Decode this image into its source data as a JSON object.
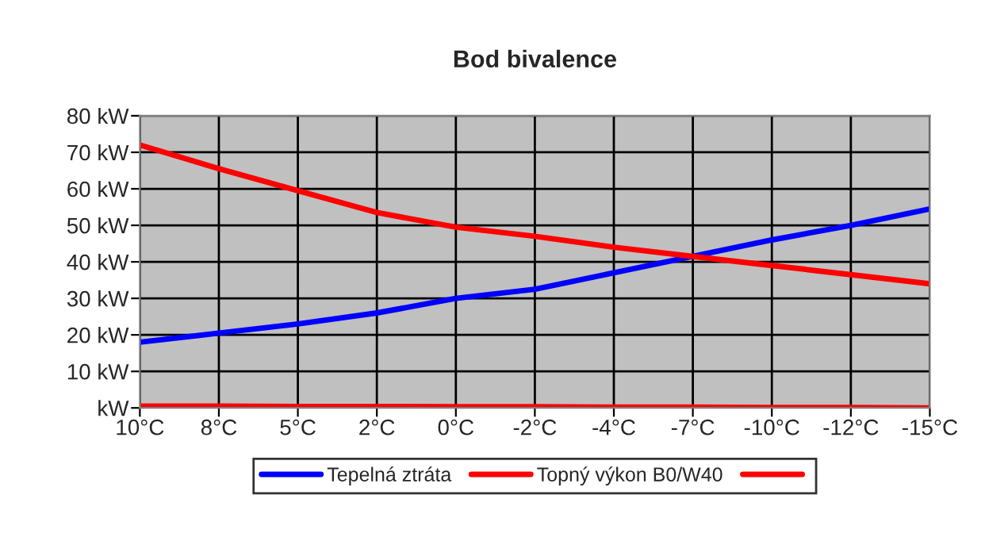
{
  "chart_data": {
    "type": "line",
    "title": "Bod bivalence",
    "categories": [
      "10°C",
      "8°C",
      "5°C",
      "2°C",
      "0°C",
      "-2°C",
      "-4°C",
      "-7°C",
      "-10°C",
      "-12°C",
      "-15°C"
    ],
    "series": [
      {
        "name": "Tepelná ztráta",
        "color": "#0000ff",
        "values": [
          18,
          20.5,
          23,
          26,
          30,
          32.5,
          37,
          41.5,
          46,
          50,
          54.5
        ]
      },
      {
        "name": "Topný výkon B0/W40",
        "color": "#ff0000",
        "values": [
          72,
          65.5,
          59.5,
          53.5,
          49.5,
          47,
          44,
          41.5,
          39,
          36.5,
          34
        ]
      },
      {
        "color": "#ff0000",
        "values": [
          0.5,
          0.5,
          0.4,
          0.4,
          0.3,
          0.3,
          0.2,
          0.2,
          0.1,
          0.1,
          0
        ]
      }
    ],
    "ylim": [
      0,
      80
    ],
    "yticks": [
      {
        "value": 0,
        "label": "kW"
      },
      {
        "value": 10,
        "label": "10 kW"
      },
      {
        "value": 20,
        "label": "20 kW"
      },
      {
        "value": 30,
        "label": "30 kW"
      },
      {
        "value": 40,
        "label": "40 kW"
      },
      {
        "value": 50,
        "label": "50 kW"
      },
      {
        "value": 60,
        "label": "60 kW"
      },
      {
        "value": 70,
        "label": "70 kW"
      },
      {
        "value": 80,
        "label": "80 kW"
      }
    ],
    "grid": true,
    "legend": "bottom",
    "marker": "none"
  }
}
